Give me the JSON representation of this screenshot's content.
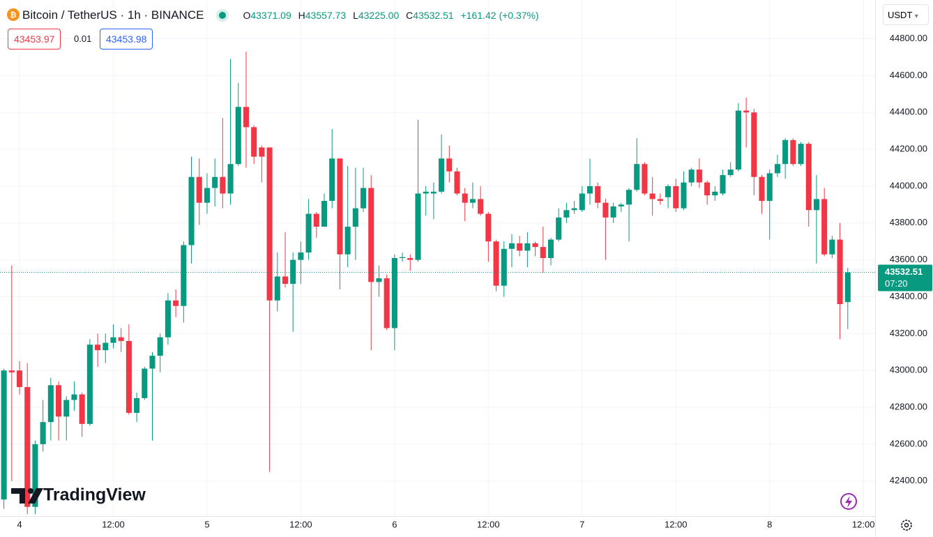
{
  "header": {
    "symbol": "Bitcoin / TetherUS · 1h · BINANCE",
    "o_label": "O",
    "o": "43371.09",
    "h_label": "H",
    "h": "43557.73",
    "l_label": "L",
    "l": "43225.00",
    "c_label": "C",
    "c": "43532.51",
    "change": "+161.42 (+0.37%)",
    "sell": "43453.97",
    "spread": "0.01",
    "buy": "43453.98",
    "currency": "USDT",
    "countdown": "07:20",
    "brand": "TradingView"
  },
  "chart_data": {
    "type": "candlestick",
    "up_color": "#089981",
    "down_color": "#f23645",
    "grid": true,
    "x": [
      -2,
      -1,
      0,
      1,
      2,
      3,
      4,
      5,
      6,
      7,
      8,
      9,
      10,
      11,
      12,
      13,
      14,
      15,
      16,
      17,
      18,
      19,
      20,
      21,
      22,
      23,
      24,
      25,
      26,
      27,
      28,
      29,
      30,
      31,
      32,
      33,
      34,
      35,
      36,
      37,
      38,
      39,
      40,
      41,
      42,
      43,
      44,
      45,
      46,
      47,
      48,
      49,
      50,
      51,
      52,
      53,
      54,
      55,
      56,
      57,
      58,
      59,
      60,
      61,
      62,
      63,
      64,
      65,
      66,
      67,
      68,
      69,
      70,
      71,
      72,
      73,
      74,
      75,
      76,
      77,
      78,
      79,
      80,
      81,
      82,
      83,
      84,
      85,
      86,
      87,
      88,
      89,
      90,
      91,
      92,
      93,
      94,
      95,
      96,
      97,
      98,
      99,
      100,
      101,
      102,
      103,
      104,
      105,
      106
    ],
    "open": [
      42300,
      43000,
      43000,
      42910,
      42260,
      42600,
      42720,
      42920,
      42750,
      42840,
      42870,
      42710,
      43140,
      43110,
      43150,
      43180,
      43160,
      42770,
      42850,
      43010,
      43080,
      43180,
      43380,
      43350,
      43680,
      44050,
      43910,
      43990,
      44050,
      43960,
      44120,
      44430,
      44320,
      44210,
      44210,
      43380,
      43510,
      43470,
      43600,
      43640,
      43850,
      43780,
      43920,
      44150,
      43630,
      43780,
      43880,
      43990,
      43480,
      43500,
      43230,
      43610,
      43610,
      43600,
      43960,
      43960,
      43970,
      44150,
      44080,
      43960,
      43910,
      43930,
      43850,
      43700,
      43460,
      43660,
      43690,
      43650,
      43690,
      43670,
      43610,
      43710,
      43830,
      43870,
      43870,
      43960,
      44000,
      43910,
      43830,
      43890,
      43900,
      43980,
      44120,
      43960,
      43930,
      43940,
      44000,
      43880,
      44020,
      44090,
      44020,
      43950,
      43960,
      44060,
      44090,
      44410,
      44400,
      44050,
      43920,
      44070,
      44120,
      44250,
      44120,
      44230,
      43870,
      43930,
      43630,
      43710,
      43371.09
    ],
    "high": [
      43010,
      43570,
      43050,
      43040,
      42620,
      42840,
      42960,
      42940,
      42860,
      42940,
      42880,
      43170,
      43200,
      43200,
      43250,
      43230,
      43250,
      42880,
      43020,
      43100,
      43200,
      43420,
      43440,
      43700,
      44160,
      44150,
      44070,
      44150,
      44370,
      44690,
      44560,
      44730,
      44330,
      44220,
      44210,
      43640,
      43750,
      43640,
      43700,
      43930,
      43860,
      43960,
      44310,
      44150,
      44110,
      44100,
      44100,
      44060,
      43570,
      43520,
      43630,
      43640,
      43630,
      44360,
      44000,
      44020,
      44280,
      44220,
      44100,
      43990,
      44020,
      44000,
      43860,
      43710,
      43700,
      43740,
      43730,
      43750,
      43700,
      43780,
      43720,
      43880,
      43910,
      43920,
      44000,
      44150,
      44020,
      43930,
      43910,
      43910,
      43990,
      44260,
      44130,
      44050,
      43960,
      44010,
      44040,
      44080,
      44100,
      44150,
      44030,
      44000,
      44090,
      44130,
      44450,
      44480,
      44420,
      44060,
      44090,
      44170,
      44260,
      44260,
      44240,
      44240,
      44060,
      43990,
      43730,
      43800,
      43557.73
    ],
    "low": [
      42250,
      42400,
      42870,
      42220,
      42220,
      42560,
      42620,
      42620,
      42620,
      42780,
      42640,
      42700,
      43020,
      43040,
      43120,
      43100,
      42760,
      42720,
      42840,
      42620,
      42990,
      43140,
      43290,
      43260,
      43580,
      43790,
      43850,
      43890,
      43880,
      43900,
      44110,
      44100,
      44120,
      44020,
      42450,
      43320,
      43450,
      43210,
      43470,
      43600,
      43720,
      43780,
      43880,
      43440,
      43560,
      43600,
      43860,
      43110,
      43400,
      43220,
      43110,
      43590,
      43540,
      43590,
      43840,
      43820,
      43960,
      44020,
      43950,
      43810,
      43880,
      43840,
      43590,
      43430,
      43400,
      43560,
      43620,
      43560,
      43620,
      43530,
      43570,
      43700,
      43800,
      43850,
      43860,
      43900,
      43880,
      43600,
      43800,
      43860,
      43700,
      43970,
      43950,
      43840,
      43900,
      43880,
      43860,
      43870,
      44000,
      43990,
      43900,
      43920,
      43950,
      44050,
      44080,
      44210,
      43950,
      43850,
      43710,
      44050,
      44040,
      44110,
      44110,
      43780,
      43580,
      43620,
      43610,
      43170,
      43225
    ],
    "close": [
      43000,
      42990,
      42910,
      42260,
      42600,
      42720,
      42920,
      42750,
      42840,
      42870,
      42710,
      43140,
      43110,
      43150,
      43180,
      43160,
      42770,
      42850,
      43010,
      43080,
      43180,
      43380,
      43350,
      43680,
      44050,
      43910,
      43990,
      44050,
      43960,
      44120,
      44430,
      44320,
      44160,
      44160,
      43380,
      43510,
      43470,
      43600,
      43640,
      43850,
      43780,
      43920,
      44150,
      43630,
      43780,
      43880,
      43990,
      43480,
      43500,
      43230,
      43610,
      43615,
      43600,
      43960,
      43970,
      43970,
      44150,
      44080,
      43960,
      43910,
      43930,
      43850,
      43700,
      43460,
      43660,
      43690,
      43650,
      43690,
      43670,
      43610,
      43710,
      43830,
      43870,
      43880,
      43960,
      44000,
      43910,
      43830,
      43890,
      43900,
      43980,
      44120,
      43960,
      43930,
      43920,
      44000,
      43880,
      44020,
      44090,
      44020,
      43950,
      43970,
      44060,
      44090,
      44410,
      44400,
      44050,
      43920,
      44070,
      44120,
      44250,
      44120,
      44230,
      43870,
      43930,
      43630,
      43710,
      43360,
      43532.51
    ],
    "xlim": [
      -2.5,
      109.5
    ],
    "xticks": [
      {
        "value": 0,
        "label": "4"
      },
      {
        "value": 12,
        "label": "12:00"
      },
      {
        "value": 24,
        "label": "5"
      },
      {
        "value": 36,
        "label": "12:00"
      },
      {
        "value": 48,
        "label": "6"
      },
      {
        "value": 60,
        "label": "12:00"
      },
      {
        "value": 72,
        "label": "7"
      },
      {
        "value": 84,
        "label": "12:00"
      },
      {
        "value": 96,
        "label": "8"
      },
      {
        "value": 108,
        "label": "12:00"
      }
    ],
    "ylim": [
      42210,
      45010
    ],
    "yticks": [
      {
        "value": 42400,
        "label": "42400.00"
      },
      {
        "value": 42600,
        "label": "42600.00"
      },
      {
        "value": 42800,
        "label": "42800.00"
      },
      {
        "value": 43000,
        "label": "43000.00"
      },
      {
        "value": 43200,
        "label": "43200.00"
      },
      {
        "value": 43400,
        "label": "43400.00"
      },
      {
        "value": 43600,
        "label": "43600.00"
      },
      {
        "value": 43800,
        "label": "43800.00"
      },
      {
        "value": 44000,
        "label": "44000.00"
      },
      {
        "value": 44200,
        "label": "44200.00"
      },
      {
        "value": 44400,
        "label": "44400.00"
      },
      {
        "value": 44600,
        "label": "44600.00"
      },
      {
        "value": 44800,
        "label": "44800.00"
      }
    ]
  }
}
